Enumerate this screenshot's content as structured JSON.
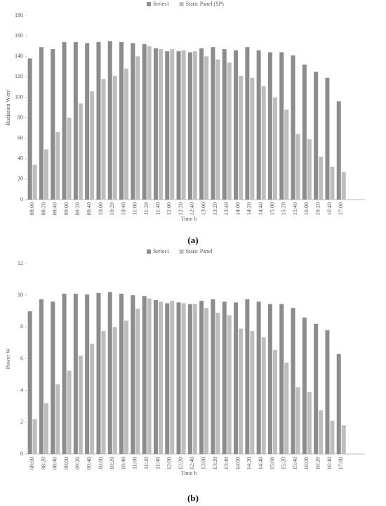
{
  "chart_data": [
    {
      "type": "bar",
      "caption": "(a)",
      "y_label": "Radiation W/m²",
      "x_label": "Time h",
      "categories": [
        "08:00",
        "08:20",
        "08:40",
        "09:00",
        "09:20",
        "09:40",
        "10:00",
        "10:20",
        "10:40",
        "11:00",
        "11:20",
        "11:40",
        "12:00",
        "12:20",
        "12:40",
        "13:00",
        "13:20",
        "13:40",
        "14:00",
        "14:20",
        "14:40",
        "15:00",
        "15:20",
        "15:40",
        "16:00",
        "16:20",
        "16:40",
        "17:00"
      ],
      "series": [
        {
          "name": "Series1",
          "color": "#8c8c8c",
          "values": [
            138,
            149,
            147,
            154,
            154,
            153,
            154,
            155,
            154,
            153,
            152,
            148,
            145,
            145,
            144,
            148,
            149,
            147,
            146,
            149,
            146,
            144,
            144,
            141,
            132,
            125,
            119,
            96
          ]
        },
        {
          "name": "Static Panel (SP)",
          "color": "#bdbdbd",
          "values": [
            34,
            49,
            66,
            80,
            94,
            106,
            118,
            121,
            128,
            140,
            150,
            147,
            147,
            146,
            145,
            140,
            137,
            134,
            121,
            119,
            111,
            100,
            88,
            64,
            59,
            42,
            32,
            27
          ]
        }
      ],
      "ylim": [
        0,
        180
      ],
      "yticks": [
        0,
        20,
        40,
        60,
        80,
        100,
        120,
        140,
        160,
        180
      ],
      "legend": "top"
    },
    {
      "type": "bar",
      "caption": "(b)",
      "y_label": "Power W",
      "x_label": "Time h",
      "categories": [
        "08:00",
        "08:20",
        "08:40",
        "09:00",
        "09:20",
        "09:40",
        "10:00",
        "10:20",
        "10:40",
        "11:00",
        "11:20",
        "11:40",
        "12:00",
        "12:20",
        "12:40",
        "13:00",
        "13:20",
        "13:40",
        "14:00",
        "14:20",
        "14:40",
        "15:00",
        "15:20",
        "15:40",
        "16:00",
        "16:20",
        "16:40",
        "17:00"
      ],
      "series": [
        {
          "name": "Series1",
          "color": "#8c8c8c",
          "values": [
            9.0,
            9.75,
            9.6,
            10.1,
            10.1,
            10.05,
            10.15,
            10.2,
            10.1,
            10.0,
            9.95,
            9.7,
            9.5,
            9.55,
            9.45,
            9.65,
            9.75,
            9.6,
            9.55,
            9.75,
            9.6,
            9.45,
            9.45,
            9.2,
            8.6,
            8.2,
            7.8,
            6.3
          ]
        },
        {
          "name": "Static Panel",
          "color": "#bdbdbd",
          "values": [
            2.2,
            3.2,
            4.4,
            5.25,
            6.2,
            6.95,
            7.75,
            8.0,
            8.4,
            9.15,
            9.8,
            9.6,
            9.65,
            9.5,
            9.45,
            9.2,
            8.9,
            8.75,
            7.9,
            7.75,
            7.35,
            6.55,
            5.75,
            4.2,
            3.9,
            2.75,
            2.1,
            1.8
          ]
        }
      ],
      "ylim": [
        0,
        12
      ],
      "yticks": [
        0,
        2,
        4,
        6,
        8,
        10,
        12
      ],
      "legend": "top"
    }
  ]
}
